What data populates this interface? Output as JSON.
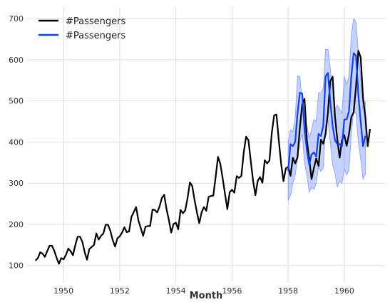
{
  "chart_data": {
    "type": "line",
    "title": "",
    "xlabel": "Month",
    "ylabel": "",
    "xlim": [
      1948.7,
      1961.45
    ],
    "ylim": [
      58,
      728
    ],
    "x_ticks": [
      1950,
      1952,
      1954,
      1956,
      1958,
      1960
    ],
    "x_tick_labels": [
      "1950",
      "1952",
      "1954",
      "1956",
      "1958",
      "1960"
    ],
    "y_ticks": [
      100,
      200,
      300,
      400,
      500,
      600,
      700
    ],
    "y_tick_labels": [
      "100",
      "200",
      "300",
      "400",
      "500",
      "600",
      "700"
    ],
    "grid": true,
    "legend_position": "top-left",
    "colors": {
      "actual": "#000000",
      "forecast": "#1040e8",
      "band": "#6f8dff",
      "grid": "#dddddd"
    },
    "series": [
      {
        "name": "#Passengers",
        "role": "actual",
        "x_start": 1949.0,
        "x_step": 0.0833333,
        "values": [
          112,
          118,
          132,
          129,
          121,
          135,
          148,
          148,
          136,
          119,
          104,
          118,
          115,
          126,
          141,
          135,
          125,
          149,
          170,
          170,
          158,
          133,
          114,
          140,
          145,
          150,
          178,
          163,
          172,
          178,
          199,
          199,
          184,
          162,
          146,
          166,
          171,
          180,
          193,
          181,
          183,
          218,
          230,
          242,
          209,
          191,
          172,
          194,
          196,
          196,
          236,
          235,
          229,
          243,
          264,
          272,
          237,
          211,
          180,
          201,
          204,
          188,
          235,
          227,
          234,
          264,
          302,
          293,
          259,
          229,
          203,
          229,
          242,
          233,
          267,
          269,
          270,
          315,
          364,
          347,
          312,
          274,
          237,
          278,
          284,
          277,
          317,
          313,
          318,
          374,
          413,
          405,
          355,
          306,
          271,
          306,
          315,
          301,
          356,
          348,
          355,
          422,
          465,
          467,
          404,
          347,
          305,
          336,
          340,
          318,
          362,
          348,
          363,
          435,
          491,
          505,
          404,
          359,
          310,
          337,
          360,
          342,
          406,
          396,
          420,
          472,
          548,
          559,
          463,
          407,
          362,
          405,
          417,
          391,
          419,
          461,
          472,
          535,
          622,
          606,
          508,
          461,
          390,
          432
        ]
      },
      {
        "name": "#Passengers",
        "role": "forecast",
        "x_start": 1958.0,
        "x_step": 0.0833333,
        "values": [
          330,
          395,
          390,
          400,
          470,
          520,
          518,
          430,
          380,
          345,
          370,
          375,
          365,
          420,
          415,
          440,
          560,
          568,
          500,
          440,
          405,
          395,
          395,
          390,
          455,
          455,
          475,
          560,
          616,
          610,
          515,
          450,
          390,
          415
        ],
        "lower": [
          258,
          270,
          300,
          320,
          360,
          400,
          420,
          350,
          320,
          278,
          290,
          285,
          300,
          340,
          328,
          338,
          440,
          455,
          400,
          345,
          325,
          292,
          305,
          300,
          335,
          320,
          332,
          420,
          475,
          470,
          400,
          360,
          310,
          322
        ],
        "upper": [
          400,
          430,
          425,
          460,
          560,
          560,
          500,
          450,
          440,
          410,
          430,
          455,
          450,
          520,
          520,
          530,
          625,
          625,
          580,
          510,
          480,
          490,
          480,
          470,
          560,
          540,
          560,
          660,
          700,
          692,
          620,
          560,
          480,
          500
        ]
      }
    ]
  }
}
